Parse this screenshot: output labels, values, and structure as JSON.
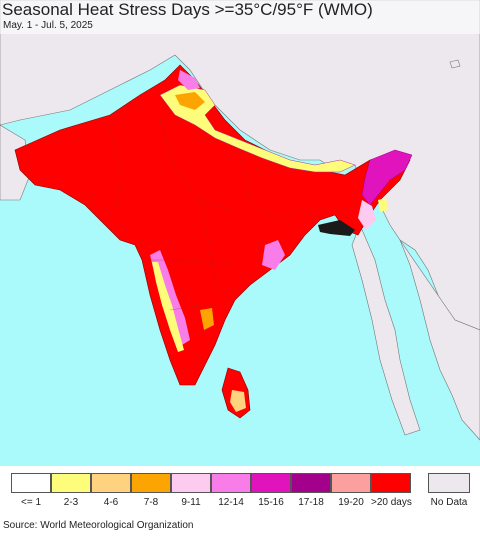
{
  "title": "Seasonal Heat Stress Days >=35°C/95°F (WMO)",
  "subtitle": "May. 1 - Jul. 5, 2025",
  "source": "Source: World Meteorological Organization",
  "colors": {
    "ocean": "#aaf9fb",
    "no_data_land": "#ece8ee",
    "border": "#666666"
  },
  "legend": {
    "items": [
      {
        "label": "<= 1",
        "color": "#ffffff"
      },
      {
        "label": "2-3",
        "color": "#fdfd7b"
      },
      {
        "label": "4-6",
        "color": "#fed27e"
      },
      {
        "label": "7-8",
        "color": "#fca502"
      },
      {
        "label": "9-11",
        "color": "#fecbf0"
      },
      {
        "label": "12-14",
        "color": "#f87de8"
      },
      {
        "label": "15-16",
        "color": "#e013bd"
      },
      {
        "label": "17-18",
        "color": "#a3008c"
      },
      {
        "label": "19-20",
        "color": "#fc9f9f"
      },
      {
        "label": ">20 days",
        "color": "#ff0000"
      }
    ],
    "no_data": {
      "label": "No Data",
      "color": "#ece8ee"
    }
  }
}
